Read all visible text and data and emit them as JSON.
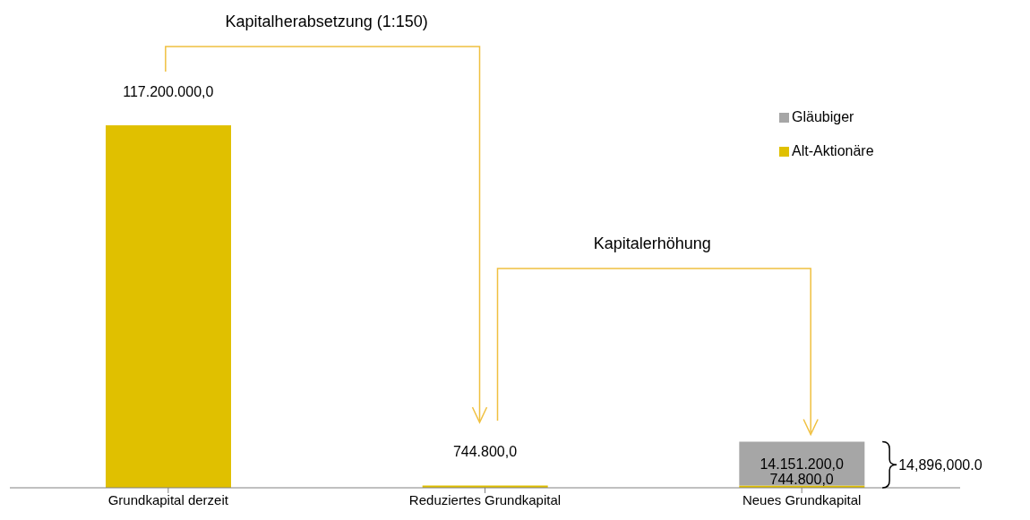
{
  "chart_data": {
    "type": "bar",
    "stacked": true,
    "categories": [
      "Grundkapital derzeit",
      "Reduziertes Grundkapital",
      "Neues Grundkapital"
    ],
    "ylim": [
      0,
      117200000
    ],
    "series": [
      {
        "name": "Alt-Aktionäre",
        "color": "#e0c000",
        "values": [
          117200000,
          744800,
          744800
        ],
        "value_labels": [
          "117.200.000,0",
          "744.800,0",
          "744.800,0"
        ]
      },
      {
        "name": "Gläubiger",
        "color": "#a6a6a6",
        "values": [
          null,
          null,
          14151200
        ],
        "value_labels": [
          null,
          null,
          "14.151.200,0"
        ]
      }
    ],
    "totals": [
      null,
      null,
      "14,896,000.0"
    ],
    "annotations": [
      "Kapitalherabsetzung (1:150)",
      "Kapitalerhöhung"
    ],
    "legend": "top right"
  }
}
